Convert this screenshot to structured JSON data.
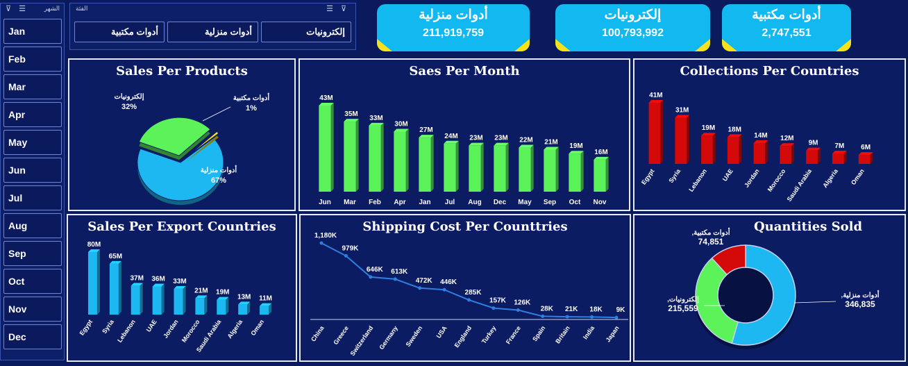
{
  "month_slicer": {
    "title": "الشهر",
    "items": [
      "Jan",
      "Feb",
      "Mar",
      "Apr",
      "May",
      "Jun",
      "Jul",
      "Aug",
      "Sep",
      "Oct",
      "Nov",
      "Dec"
    ]
  },
  "category_slicer": {
    "title": "الفئة",
    "items": [
      "إلكترونيات",
      "أدوات منزلية",
      "أدوات مكتبية"
    ]
  },
  "kpis": [
    {
      "title": "أدوات منزلية",
      "value": "211,919,759"
    },
    {
      "title": "إلكترونيات",
      "value": "100,793,992"
    },
    {
      "title": "أدوات مكتبية",
      "value": "2,747,551"
    }
  ],
  "colors": {
    "green": "#5cf25a",
    "blue": "#1db8f2",
    "red": "#d40a0a",
    "yellow": "#f6e21a"
  },
  "charts": {
    "sales_per_products": {
      "title": "Sales Per Products",
      "type": "pie",
      "slices": [
        {
          "label": "أدوات منزلية",
          "value": 67,
          "pct": "67%",
          "color": "#1db8f2"
        },
        {
          "label": "إلكترونيات",
          "value": 32,
          "pct": "32%",
          "color": "#5cf25a"
        },
        {
          "label": "أدوات مكتبية",
          "value": 1,
          "pct": "1%",
          "color": "#f6e21a"
        }
      ]
    },
    "sales_per_month": {
      "title": "Saes Per Month",
      "type": "bar",
      "categories": [
        "Jun",
        "Mar",
        "Feb",
        "Apr",
        "Jan",
        "Jul",
        "Aug",
        "Dec",
        "May",
        "Sep",
        "Oct",
        "Nov"
      ],
      "values": [
        43,
        35,
        33,
        30,
        27,
        24,
        23,
        23,
        22,
        21,
        19,
        16
      ],
      "labels": [
        "43M",
        "35M",
        "33M",
        "30M",
        "27M",
        "24M",
        "23M",
        "23M",
        "22M",
        "21M",
        "19M",
        "16M"
      ],
      "color": "#5cf25a"
    },
    "collections_per_countries": {
      "title": "Collections Per Countries",
      "type": "bar",
      "categories": [
        "Egypt",
        "Syria",
        "Lebanon",
        "UAE",
        "Jordan",
        "Morocco",
        "Saudi Arabia",
        "Algeria",
        "Oman"
      ],
      "values": [
        41,
        31,
        19,
        18,
        14,
        12,
        9,
        7,
        6
      ],
      "labels": [
        "41M",
        "31M",
        "19M",
        "18M",
        "14M",
        "12M",
        "9M",
        "7M",
        "6M"
      ],
      "color": "#d40a0a"
    },
    "sales_per_export_countries": {
      "title": "Sales Per Export Countries",
      "type": "bar",
      "categories": [
        "Egypt",
        "Syria",
        "Lebanon",
        "UAE",
        "Jordan",
        "Morocco",
        "Saudi Arabia",
        "Algeria",
        "Oman"
      ],
      "values": [
        80,
        65,
        37,
        36,
        33,
        21,
        19,
        13,
        11
      ],
      "labels": [
        "80M",
        "65M",
        "37M",
        "36M",
        "33M",
        "21M",
        "19M",
        "13M",
        "11M"
      ],
      "color": "#1db8f2"
    },
    "shipping_cost": {
      "title": "Shipping Cost Per Counttries",
      "type": "line",
      "categories": [
        "China",
        "Greece",
        "Switzerland",
        "Germany",
        "Sweden",
        "USA",
        "England",
        "Turkey",
        "France",
        "Spain",
        "Britain",
        "India",
        "Japan"
      ],
      "values": [
        1180,
        979,
        646,
        613,
        472,
        446,
        285,
        157,
        126,
        28,
        21,
        18,
        9
      ],
      "labels": [
        "1,180K",
        "979K",
        "646K",
        "613K",
        "472K",
        "446K",
        "285K",
        "157K",
        "126K",
        "28K",
        "21K",
        "18K",
        "9K"
      ],
      "color": "#2f7fe0"
    },
    "quantities_sold": {
      "title": "Quantities Sold",
      "type": "pie",
      "slices": [
        {
          "label": "أدوات منزلية,",
          "value": 346835,
          "display": "346,835",
          "color": "#1db8f2"
        },
        {
          "label": "إلكترونيات,",
          "value": 215559,
          "display": "215,559",
          "color": "#5cf25a"
        },
        {
          "label": "أدوات مكتبية,",
          "value": 74851,
          "display": "74,851",
          "color": "#d40a0a"
        }
      ]
    }
  }
}
